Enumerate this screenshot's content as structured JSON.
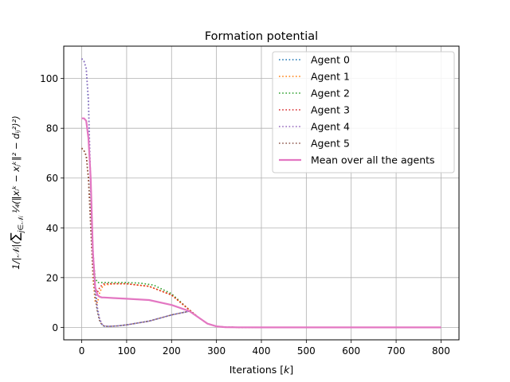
{
  "chart_data": {
    "type": "line",
    "title": "Formation potential",
    "xlabel": "Iterations [k]",
    "ylabel": "1/|N_i| ( Σ_{j∈N_i} 1/4 ( ||x_i^k − x_j^k||^2 − d_ij^2 )^2 )",
    "xlim": [
      -40,
      840
    ],
    "ylim": [
      -5,
      113
    ],
    "xticks": [
      "0",
      "100",
      "200",
      "300",
      "400",
      "500",
      "600",
      "700",
      "800"
    ],
    "yticks": [
      "0",
      "20",
      "40",
      "60",
      "80",
      "100"
    ],
    "grid": true,
    "legend_position": "top-right",
    "series": [
      {
        "name": "Agent 0",
        "color": "#1f77b4",
        "style": "dotted",
        "x": [
          0,
          5,
          10,
          15,
          20,
          25,
          30,
          35,
          40,
          45,
          50,
          60,
          80,
          100,
          150,
          200,
          240,
          260,
          280,
          300,
          320,
          350,
          400,
          600,
          800
        ],
        "y": [
          108,
          107,
          104,
          90,
          55,
          30,
          15,
          7,
          3,
          1.2,
          0.5,
          0.4,
          0.6,
          1,
          2.5,
          5,
          6.5,
          4,
          1.5,
          0.4,
          0.1,
          0.02,
          0,
          0,
          0
        ]
      },
      {
        "name": "Agent 1",
        "color": "#ff7f0e",
        "style": "dotted",
        "x": [
          0,
          5,
          10,
          15,
          20,
          25,
          30,
          35,
          40,
          45,
          50,
          70,
          100,
          150,
          200,
          240,
          260,
          280,
          300,
          320,
          350,
          400,
          600,
          800
        ],
        "y": [
          72,
          71,
          69,
          60,
          42,
          20,
          10,
          10,
          14,
          16,
          17,
          17.5,
          17.5,
          16.5,
          13,
          7,
          4,
          1.5,
          0.4,
          0.1,
          0.02,
          0,
          0,
          0
        ]
      },
      {
        "name": "Agent 2",
        "color": "#2ca02c",
        "style": "dotted",
        "x": [
          0,
          5,
          10,
          15,
          20,
          25,
          30,
          35,
          40,
          45,
          50,
          70,
          100,
          130,
          160,
          200,
          240,
          260,
          280,
          300,
          320,
          350,
          400,
          600,
          800
        ],
        "y": [
          72,
          71,
          69,
          60,
          45,
          28,
          20,
          18,
          18,
          18,
          18,
          18,
          18,
          17.8,
          17,
          13.5,
          7,
          4,
          1.5,
          0.4,
          0.1,
          0.02,
          0,
          0,
          0
        ]
      },
      {
        "name": "Agent 3",
        "color": "#d62728",
        "style": "dotted",
        "x": [
          0,
          5,
          10,
          15,
          20,
          25,
          30,
          35,
          40,
          45,
          50,
          70,
          100,
          150,
          200,
          240,
          260,
          280,
          300,
          320,
          350,
          400,
          600,
          800
        ],
        "y": [
          72,
          71,
          69,
          60,
          42,
          24,
          16,
          14,
          16,
          17,
          17.5,
          17.5,
          17.5,
          16.5,
          13,
          7,
          4,
          1.5,
          0.4,
          0.1,
          0.02,
          0,
          0,
          0
        ]
      },
      {
        "name": "Agent 4",
        "color": "#9467bd",
        "style": "dotted",
        "x": [
          0,
          5,
          10,
          15,
          20,
          25,
          30,
          35,
          40,
          45,
          50,
          60,
          80,
          100,
          150,
          200,
          240,
          260,
          280,
          300,
          320,
          350,
          400,
          600,
          800
        ],
        "y": [
          108,
          107,
          104,
          92,
          58,
          32,
          17,
          8,
          3.5,
          1.4,
          0.6,
          0.4,
          0.6,
          1,
          2.5,
          5,
          6.5,
          4,
          1.5,
          0.4,
          0.1,
          0.02,
          0,
          0,
          0
        ]
      },
      {
        "name": "Agent 5",
        "color": "#8c564b",
        "style": "dotted",
        "x": [
          0,
          5,
          10,
          15,
          20,
          25,
          30,
          35,
          40,
          45,
          50,
          60,
          80,
          100,
          150,
          200,
          240,
          260,
          280,
          300,
          320,
          350,
          400,
          600,
          800
        ],
        "y": [
          72,
          71,
          69,
          60,
          40,
          22,
          12,
          6,
          2.5,
          1,
          0.5,
          0.4,
          0.6,
          1,
          2.5,
          5,
          6.5,
          4,
          1.5,
          0.4,
          0.1,
          0.02,
          0,
          0,
          0
        ]
      },
      {
        "name": "Mean over all the agents",
        "color": "#e377c2",
        "style": "solid",
        "x": [
          0,
          5,
          10,
          15,
          20,
          25,
          30,
          35,
          40,
          45,
          50,
          70,
          100,
          150,
          200,
          240,
          260,
          280,
          300,
          320,
          350,
          400,
          600,
          800
        ],
        "y": [
          84,
          84,
          83,
          76,
          60,
          30,
          16,
          13,
          12.3,
          12,
          12,
          11.8,
          11.5,
          11,
          9,
          6.5,
          4,
          1.5,
          0.4,
          0.1,
          0.02,
          0,
          0,
          0
        ]
      }
    ]
  }
}
